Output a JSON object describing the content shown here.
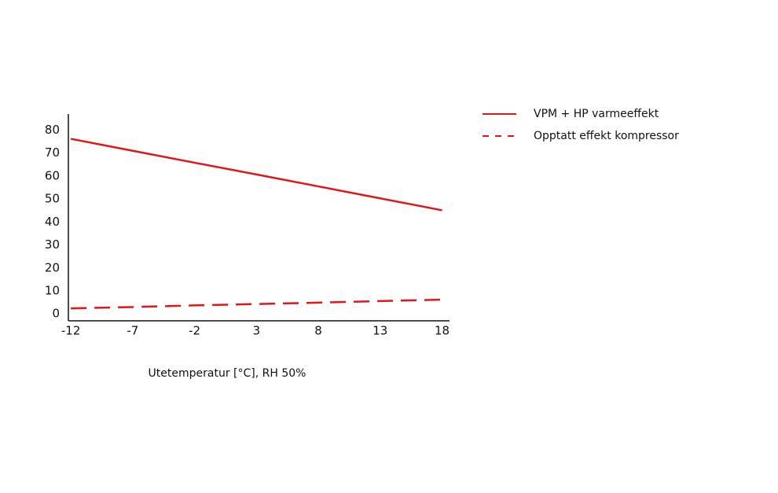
{
  "chart_data": {
    "type": "line",
    "xlabel": "Utetemperatur [°C], RH 50%",
    "x": [
      -12,
      -7,
      -2,
      3,
      8,
      13,
      18
    ],
    "series": [
      {
        "name": "VPM + HP varmeeffekt",
        "color": "#e0161b",
        "style": "solid",
        "values": [
          76.2,
          71.0,
          65.8,
          60.7,
          55.5,
          50.3,
          45.1
        ]
      },
      {
        "name": "Opptatt effekt kompressor",
        "color": "#e0161b",
        "style": "dashed",
        "values": [
          2.4,
          3.0,
          3.7,
          4.3,
          4.9,
          5.6,
          6.2
        ]
      }
    ],
    "xlim": [
      -12.2,
      18.6
    ],
    "xticks": [
      -12,
      -7,
      -2,
      3,
      8,
      13,
      18
    ],
    "ylim": [
      -3,
      87
    ],
    "yticks": [
      0,
      10,
      20,
      30,
      40,
      50,
      60,
      70,
      80
    ],
    "grid": false,
    "legend": "right"
  }
}
